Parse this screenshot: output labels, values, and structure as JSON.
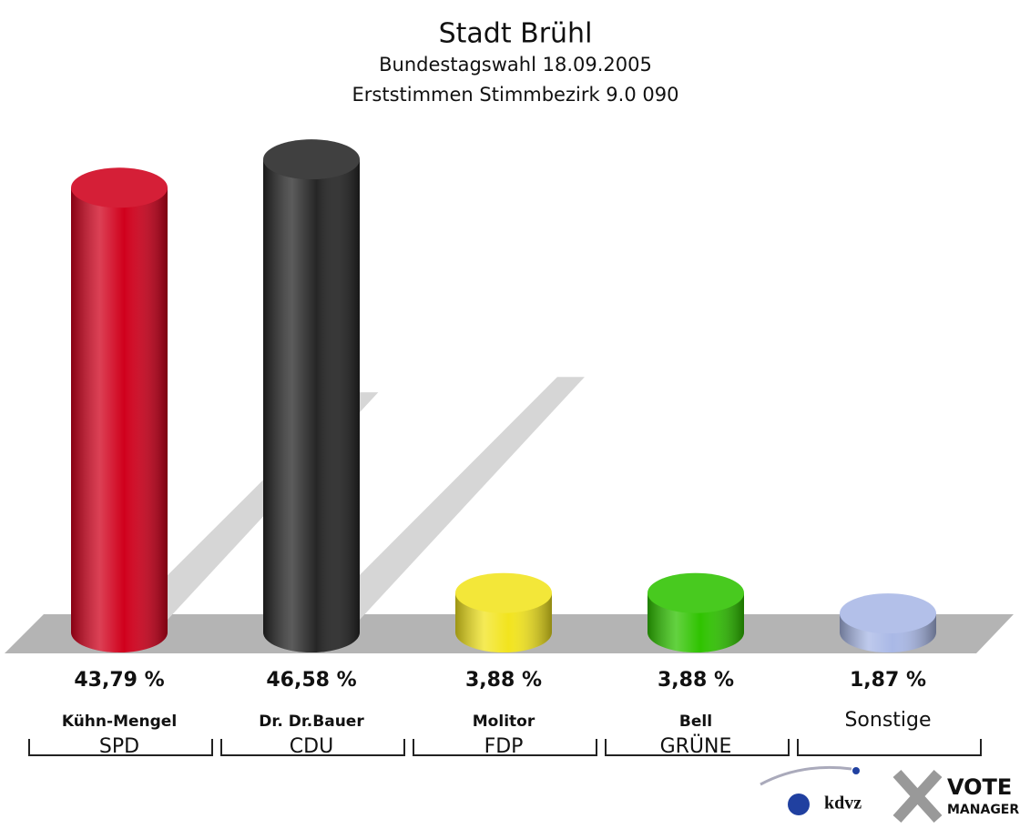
{
  "chart_data": {
    "type": "bar",
    "title": "Stadt Brühl",
    "subtitle": [
      "Bundestagswahl 18.09.2005",
      "Erststimmen Stimmbezirk 9.0 090"
    ],
    "categories": [
      "Kühn-Mengel",
      "Dr. Dr.Bauer",
      "Molitor",
      "Bell",
      "Sonstige"
    ],
    "parties": [
      "SPD",
      "CDU",
      "FDP",
      "GRÜNE",
      null
    ],
    "values": [
      43.79,
      46.58,
      3.88,
      3.88,
      1.87
    ],
    "value_labels": [
      "43,79 %",
      "46,58 %",
      "3,88 %",
      "3,88 %",
      "1,87 %"
    ],
    "colors": [
      "#d0001c",
      "#262626",
      "#f2e41e",
      "#2fc300",
      "#a9b8e6"
    ],
    "logo": [
      "kdvz",
      "VOTE",
      "MANAGER"
    ]
  }
}
